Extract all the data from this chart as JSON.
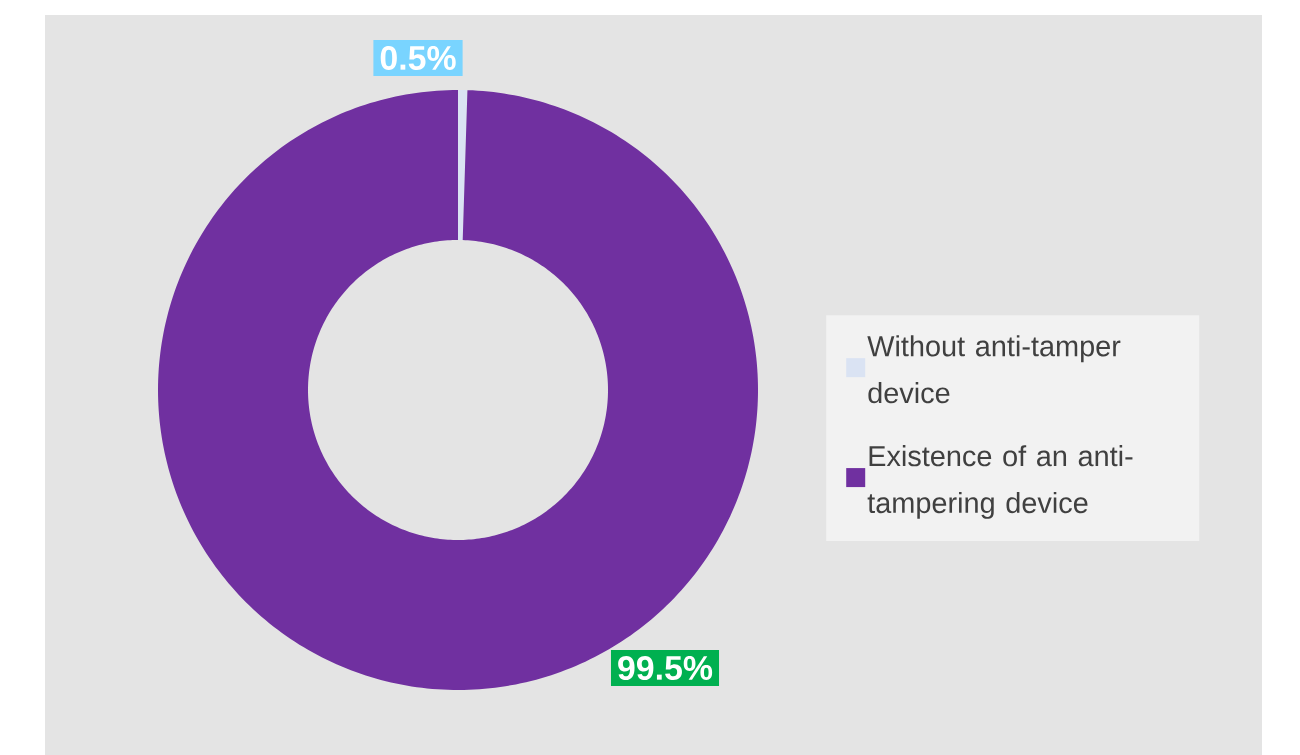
{
  "chart_data": {
    "type": "donut",
    "categories": [
      "Without anti-tamper device",
      "Existence of an anti-tampering device"
    ],
    "values": [
      0.5,
      99.5
    ],
    "colors": [
      "#dae3f3",
      "#7030a0"
    ],
    "value_labels": [
      "0.5%",
      "99.5%"
    ],
    "legend": "right"
  }
}
